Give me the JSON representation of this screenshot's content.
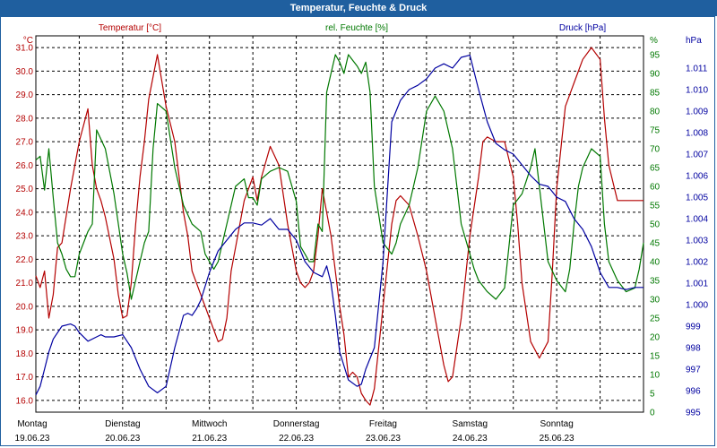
{
  "window": {
    "title": "Temperatur, Feuchte & Druck"
  },
  "colors": {
    "temperature": "#b40000",
    "humidity": "#007800",
    "pressure": "#0000a0",
    "grid": "#000000",
    "title_bar": "#1f5f9f"
  },
  "chart_data": {
    "type": "line",
    "title": "Temperatur, Feuchte & Druck",
    "x_range": [
      0,
      7
    ],
    "days": [
      {
        "name": "Montag",
        "date": "19.06.23"
      },
      {
        "name": "Dienstag",
        "date": "20.06.23"
      },
      {
        "name": "Mittwoch",
        "date": "21.06.23"
      },
      {
        "name": "Donnerstag",
        "date": "22.06.23"
      },
      {
        "name": "Freitag",
        "date": "23.06.23"
      },
      {
        "name": "Samstag",
        "date": "24.06.23"
      },
      {
        "name": "Sonntag",
        "date": "25.06.23"
      }
    ],
    "axes": {
      "temperature": {
        "label": "Temperatur [°C]",
        "unit": "°C",
        "range": [
          15.5,
          31.5
        ],
        "ticks": [
          "16.0",
          "17.0",
          "18.0",
          "19.0",
          "20.0",
          "21.0",
          "22.0",
          "23.0",
          "24.0",
          "25.0",
          "26.0",
          "27.0",
          "28.0",
          "29.0",
          "30.0",
          "31.0"
        ]
      },
      "humidity": {
        "label": "rel. Feuchte [%]",
        "unit": "%",
        "range": [
          0,
          100
        ],
        "ticks": [
          "0",
          "5",
          "10",
          "15",
          "20",
          "25",
          "30",
          "35",
          "40",
          "45",
          "50",
          "55",
          "60",
          "65",
          "70",
          "75",
          "80",
          "85",
          "90",
          "95"
        ]
      },
      "pressure": {
        "label": "Druck [hPa]",
        "unit": "hPa",
        "range": [
          995,
          1012.5
        ],
        "ticks": [
          "995",
          "996",
          "997",
          "998",
          "999",
          "1.000",
          "1.001",
          "1.002",
          "1.003",
          "1.004",
          "1.005",
          "1.006",
          "1.007",
          "1.008",
          "1.009",
          "1.010",
          "1.011"
        ]
      }
    },
    "series": [
      {
        "name": "Temperatur",
        "axis": "temperature",
        "x": [
          0,
          0.05,
          0.1,
          0.15,
          0.2,
          0.25,
          0.3,
          0.4,
          0.5,
          0.6,
          0.65,
          0.7,
          0.75,
          0.8,
          0.9,
          0.95,
          1.0,
          1.05,
          1.1,
          1.15,
          1.2,
          1.25,
          1.3,
          1.4,
          1.5,
          1.6,
          1.7,
          1.75,
          1.8,
          1.9,
          2.0,
          2.1,
          2.15,
          2.2,
          2.25,
          2.3,
          2.4,
          2.5,
          2.55,
          2.6,
          2.7,
          2.8,
          2.9,
          3.0,
          3.05,
          3.1,
          3.15,
          3.2,
          3.25,
          3.3,
          3.4,
          3.5,
          3.55,
          3.6,
          3.65,
          3.7,
          3.75,
          3.8,
          3.85,
          3.9,
          4.0,
          4.1,
          4.15,
          4.2,
          4.3,
          4.4,
          4.5,
          4.6,
          4.7,
          4.75,
          4.8,
          4.9,
          5.0,
          5.1,
          5.15,
          5.2,
          5.3,
          5.4,
          5.5,
          5.55,
          5.6,
          5.7,
          5.8,
          5.9,
          5.95,
          6.0,
          6.1,
          6.15,
          6.2,
          6.3,
          6.4,
          6.5,
          6.55,
          6.6,
          6.7,
          6.8,
          6.9,
          6.95,
          7.0
        ],
        "values": [
          21.3,
          20.8,
          21.5,
          19.5,
          20.5,
          22.5,
          22.7,
          25.0,
          27.0,
          28.4,
          26.0,
          25.0,
          24.5,
          23.8,
          22.0,
          20.5,
          19.5,
          19.6,
          21.0,
          23.5,
          25.5,
          27.0,
          28.8,
          30.7,
          28.5,
          27.0,
          24.0,
          23.0,
          21.5,
          20.5,
          19.5,
          18.5,
          18.6,
          19.5,
          21.5,
          22.5,
          24.5,
          25.5,
          24.5,
          25.5,
          26.8,
          26.0,
          23.5,
          21.5,
          21.0,
          20.8,
          21.0,
          21.5,
          23.0,
          25.0,
          23.0,
          20.0,
          18.8,
          17.0,
          17.2,
          17.0,
          16.3,
          16.0,
          15.8,
          16.5,
          20.0,
          23.5,
          24.5,
          24.7,
          24.3,
          23.0,
          21.5,
          19.5,
          17.5,
          16.8,
          17.0,
          19.5,
          23.0,
          25.5,
          27.0,
          27.2,
          27.0,
          27.0,
          25.5,
          23.5,
          21.0,
          18.5,
          17.8,
          18.5,
          21.5,
          25.0,
          28.5,
          29.0,
          29.5,
          30.5,
          31.0,
          30.5,
          28.0,
          26.0,
          24.5,
          24.5,
          24.5,
          24.5,
          24.5
        ]
      },
      {
        "name": "rel. Feuchte",
        "axis": "humidity",
        "x": [
          0,
          0.05,
          0.1,
          0.15,
          0.2,
          0.25,
          0.3,
          0.35,
          0.4,
          0.45,
          0.5,
          0.6,
          0.65,
          0.7,
          0.8,
          0.9,
          1.0,
          1.05,
          1.1,
          1.2,
          1.25,
          1.3,
          1.35,
          1.4,
          1.5,
          1.6,
          1.7,
          1.8,
          1.9,
          1.95,
          2.0,
          2.05,
          2.1,
          2.15,
          2.2,
          2.3,
          2.4,
          2.45,
          2.5,
          2.55,
          2.6,
          2.7,
          2.8,
          2.9,
          3.0,
          3.05,
          3.1,
          3.15,
          3.2,
          3.25,
          3.3,
          3.35,
          3.4,
          3.45,
          3.5,
          3.55,
          3.6,
          3.7,
          3.75,
          3.8,
          3.85,
          3.9,
          4.0,
          4.1,
          4.15,
          4.2,
          4.3,
          4.4,
          4.5,
          4.6,
          4.7,
          4.8,
          4.9,
          5.0,
          5.05,
          5.1,
          5.2,
          5.3,
          5.4,
          5.5,
          5.6,
          5.7,
          5.75,
          5.8,
          5.9,
          6.0,
          6.1,
          6.15,
          6.2,
          6.25,
          6.3,
          6.4,
          6.5,
          6.55,
          6.6,
          6.7,
          6.8,
          6.9,
          6.95,
          7.0
        ],
        "values": [
          67,
          68,
          59,
          70,
          57,
          45,
          42,
          38,
          36,
          36,
          42,
          48,
          50,
          75,
          70,
          58,
          42,
          37,
          30,
          40,
          45,
          48,
          70,
          82,
          80,
          65,
          55,
          50,
          48,
          42,
          40,
          38,
          40,
          45,
          50,
          60,
          62,
          57,
          57,
          55,
          62,
          64,
          65,
          64,
          56,
          44,
          42,
          40,
          40,
          50,
          48,
          85,
          90,
          95,
          93,
          90,
          95,
          92,
          90,
          93,
          85,
          60,
          45,
          42,
          45,
          50,
          55,
          65,
          80,
          84,
          80,
          70,
          50,
          42,
          38,
          35,
          32,
          30,
          33,
          55,
          58,
          65,
          70,
          60,
          40,
          35,
          32,
          38,
          50,
          60,
          65,
          70,
          68,
          50,
          40,
          35,
          32,
          33,
          38,
          45
        ]
      },
      {
        "name": "Druck",
        "axis": "pressure",
        "x": [
          0,
          0.05,
          0.1,
          0.15,
          0.2,
          0.3,
          0.4,
          0.45,
          0.5,
          0.6,
          0.7,
          0.75,
          0.8,
          0.9,
          1.0,
          1.1,
          1.2,
          1.3,
          1.4,
          1.5,
          1.6,
          1.7,
          1.75,
          1.8,
          1.85,
          1.9,
          2.0,
          2.1,
          2.2,
          2.3,
          2.4,
          2.5,
          2.6,
          2.7,
          2.8,
          2.9,
          3.0,
          3.1,
          3.2,
          3.3,
          3.35,
          3.4,
          3.45,
          3.5,
          3.6,
          3.7,
          3.75,
          3.8,
          3.9,
          4.0,
          4.1,
          4.2,
          4.3,
          4.4,
          4.5,
          4.6,
          4.7,
          4.8,
          4.9,
          5.0,
          5.1,
          5.2,
          5.3,
          5.4,
          5.5,
          5.6,
          5.7,
          5.8,
          5.9,
          6.0,
          6.1,
          6.2,
          6.3,
          6.4,
          6.5,
          6.6,
          6.7,
          6.8,
          6.9,
          7.0
        ],
        "values": [
          995.8,
          996.2,
          997.0,
          997.8,
          998.4,
          999.0,
          999.1,
          999.0,
          998.7,
          998.3,
          998.5,
          998.6,
          998.5,
          998.5,
          998.6,
          998.0,
          997.0,
          996.2,
          995.9,
          996.2,
          998.0,
          999.5,
          999.6,
          999.5,
          999.8,
          1000.2,
          1001.5,
          1002.5,
          1003.0,
          1003.5,
          1003.8,
          1003.8,
          1003.7,
          1004.0,
          1003.5,
          1003.5,
          1003.0,
          1002.0,
          1001.5,
          1001.3,
          1001.8,
          1001.0,
          999.5,
          997.8,
          996.5,
          996.2,
          996.3,
          997.0,
          998.0,
          1002.0,
          1008.5,
          1009.5,
          1010.0,
          1010.2,
          1010.5,
          1011.0,
          1011.2,
          1011.0,
          1011.5,
          1011.6,
          1010.0,
          1008.5,
          1007.5,
          1007.2,
          1007.0,
          1006.5,
          1006.0,
          1005.6,
          1005.5,
          1005.0,
          1004.8,
          1004.0,
          1003.5,
          1002.7,
          1001.5,
          1000.8,
          1000.8,
          1000.7,
          1000.8,
          1000.8
        ]
      }
    ]
  }
}
